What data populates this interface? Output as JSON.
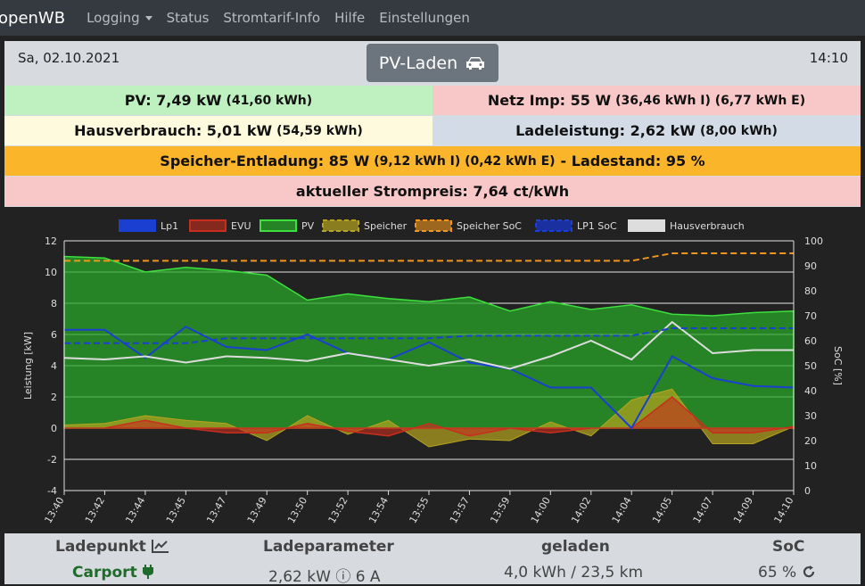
{
  "nav": {
    "brand": "openWB",
    "items": [
      "Logging",
      "Status",
      "Stromtarif-Info",
      "Hilfe",
      "Einstellungen"
    ]
  },
  "header": {
    "date": "Sa, 02.10.2021",
    "time": "14:10",
    "mode_label": "PV-Laden"
  },
  "tiles": {
    "pv": "PV: 7,49 kW",
    "pv_sub": "(41,60 kWh)",
    "netz": "Netz Imp: 55 W",
    "netz_sub": "(36,46 kWh I) (6,77 kWh E)",
    "haus": "Hausverbrauch: 5,01 kW",
    "haus_sub": "(54,59 kWh)",
    "lade": "Ladeleistung: 2,62 kW",
    "lade_sub": "(8,00 kWh)",
    "speicher_a": "Speicher-Entladung: 85 W",
    "speicher_sub": "(9,12 kWh I) (0,42 kWh E)",
    "speicher_b": "- Ladestand: 95 %",
    "preis": "aktueller Strompreis: 7,64 ct/kWh"
  },
  "colors": {
    "pv": "#28a528",
    "evu": "#c82e1e",
    "lp1": "#1a3fd1",
    "speicher": "#b5a420",
    "soc": "#f0961e",
    "haus": "#dddddd"
  },
  "chart_data": {
    "type": "area",
    "legend": [
      "Lp1",
      "EVU",
      "PV",
      "Speicher",
      "Speicher SoC",
      "LP1 SoC",
      "Hausverbrauch"
    ],
    "ylabel": "Leistung [kW]",
    "y2label": "SoC [%]",
    "ylim": [
      -4,
      12
    ],
    "y2lim": [
      0,
      100
    ],
    "yticks": [
      -4,
      -2,
      0,
      2,
      4,
      6,
      8,
      10,
      12
    ],
    "y2ticks": [
      0,
      10,
      20,
      30,
      40,
      50,
      60,
      70,
      80,
      90,
      100
    ],
    "x": [
      "13:40",
      "13:42",
      "13:44",
      "13:45",
      "13:47",
      "13:49",
      "13:50",
      "13:52",
      "13:54",
      "13:55",
      "13:57",
      "13:59",
      "14:00",
      "14:02",
      "14:04",
      "14:05",
      "14:07",
      "14:09",
      "14:10"
    ],
    "series": [
      {
        "name": "PV",
        "values": [
          11.0,
          10.9,
          10.0,
          10.3,
          10.1,
          9.8,
          8.2,
          8.6,
          8.3,
          8.1,
          8.4,
          7.5,
          8.1,
          7.6,
          7.9,
          7.3,
          7.2,
          7.4,
          7.5
        ]
      },
      {
        "name": "Lp1",
        "values": [
          6.3,
          6.3,
          4.5,
          6.5,
          5.2,
          5.0,
          6.0,
          4.8,
          4.4,
          5.5,
          4.2,
          3.8,
          2.6,
          2.6,
          0.0,
          4.6,
          3.2,
          2.7,
          2.6
        ]
      },
      {
        "name": "Hausverbrauch",
        "values": [
          4.5,
          4.4,
          4.6,
          4.2,
          4.6,
          4.5,
          4.3,
          4.8,
          4.4,
          4.0,
          4.4,
          3.8,
          4.6,
          5.6,
          4.4,
          6.8,
          4.8,
          5.0,
          5.0
        ]
      },
      {
        "name": "EVU",
        "values": [
          0.0,
          0.0,
          0.5,
          0.0,
          -0.3,
          -0.3,
          0.3,
          -0.2,
          -0.5,
          0.3,
          -0.5,
          0.0,
          -0.3,
          0.0,
          0.0,
          2.0,
          -0.3,
          -0.3,
          0.1
        ]
      },
      {
        "name": "Speicher",
        "values": [
          0.2,
          0.3,
          0.8,
          0.5,
          0.3,
          -0.8,
          0.8,
          -0.4,
          0.5,
          -1.2,
          -0.7,
          -0.8,
          0.4,
          -0.5,
          1.8,
          2.5,
          -1.0,
          -1.0,
          0.1
        ]
      },
      {
        "name": "Speicher SoC",
        "values": [
          92,
          92,
          92,
          92,
          92,
          92,
          92,
          92,
          92,
          92,
          92,
          92,
          92,
          92,
          92,
          95,
          95,
          95,
          95
        ]
      },
      {
        "name": "LP1 SoC",
        "values": [
          59,
          59,
          59,
          59,
          61,
          61,
          61,
          61,
          61,
          61,
          62,
          62,
          62,
          62,
          62,
          65,
          65,
          65,
          65
        ]
      }
    ]
  },
  "bottom": {
    "headers": [
      "Ladepunkt",
      "Ladeparameter",
      "geladen",
      "SoC"
    ],
    "carport": "Carport",
    "ladeparameter": "2,62 kW ⓘ 6 A",
    "geladen": "4,0 kWh / 23,5 km",
    "soc": "65 %"
  }
}
